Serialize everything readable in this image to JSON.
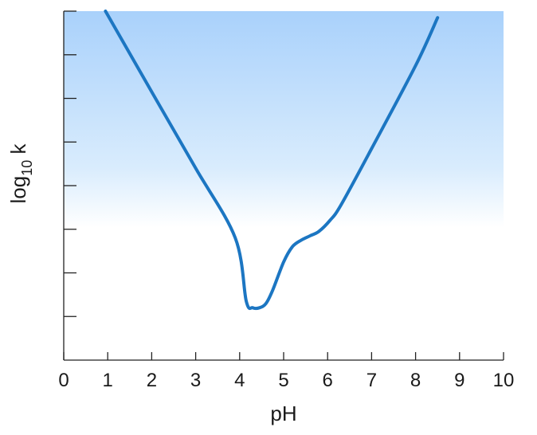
{
  "chart_data": {
    "type": "line",
    "xlabel": "pH",
    "ylabel": "log10 k",
    "ylabel_parts": {
      "base": "log",
      "sub": "10",
      "rest": " k"
    },
    "xlim": [
      0,
      10
    ],
    "ylim": [
      0,
      8
    ],
    "xticks": [
      0,
      1,
      2,
      3,
      4,
      5,
      6,
      7,
      8,
      9,
      10
    ],
    "xtick_labels": [
      "0",
      "1",
      "2",
      "3",
      "4",
      "5",
      "6",
      "7",
      "8",
      "9",
      "10"
    ],
    "yticks": [
      1,
      2,
      3,
      4,
      5,
      6,
      7,
      8
    ],
    "ytick_labels": [],
    "grid": false,
    "colors": {
      "line": "#1c76c2",
      "bg_top": "#a9d1fb",
      "bg_bottom": "#ffffff",
      "axis": "#222222"
    },
    "series": [
      {
        "x": [
          0.95,
          2.0,
          3.0,
          3.9,
          4.15,
          4.3,
          4.45,
          4.6,
          4.75,
          5.0,
          5.2,
          5.4,
          5.6,
          5.8,
          6.05,
          6.3,
          7.0,
          8.0,
          8.5
        ],
        "y": [
          8.0,
          6.15,
          4.4,
          2.8,
          1.35,
          1.2,
          1.2,
          1.3,
          1.6,
          2.25,
          2.6,
          2.75,
          2.85,
          2.95,
          3.2,
          3.55,
          4.85,
          6.75,
          7.85
        ]
      }
    ]
  }
}
